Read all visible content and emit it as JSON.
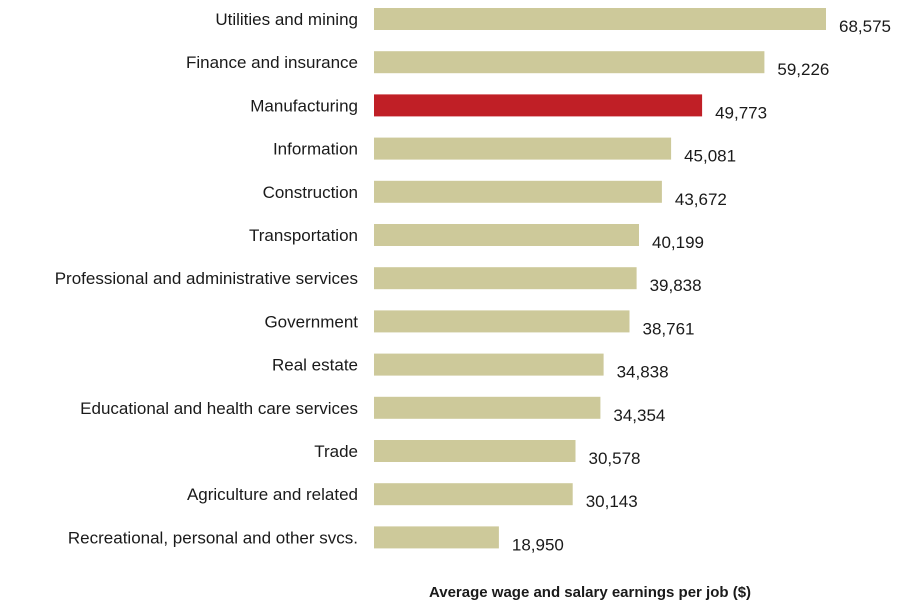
{
  "chart_data": {
    "type": "bar",
    "orientation": "horizontal",
    "categories": [
      "Utilities and mining",
      "Finance and insurance",
      "Manufacturing",
      "Information",
      "Construction",
      "Transportation",
      "Professional and administrative services",
      "Government",
      "Real estate",
      "Educational and health care services",
      "Trade",
      "Agriculture and related",
      "Recreational, personal and other svcs."
    ],
    "values": [
      68575,
      59226,
      49773,
      45081,
      43672,
      40199,
      39838,
      38761,
      34838,
      34354,
      30578,
      30143,
      18950
    ],
    "value_labels": [
      "68,575",
      "59,226",
      "49,773",
      "45,081",
      "43,672",
      "40,199",
      "39,838",
      "38,761",
      "34,838",
      "34,354",
      "30,578",
      "30,143",
      "18,950"
    ],
    "highlight_index": 2,
    "xlabel": "Average wage and salary earnings per job ($)",
    "xlim": [
      0,
      70000
    ],
    "grid": false,
    "legend": "none",
    "colors": {
      "bar": "#cdc99a",
      "highlight": "#c01f26",
      "text": "#1a1a1a"
    }
  }
}
